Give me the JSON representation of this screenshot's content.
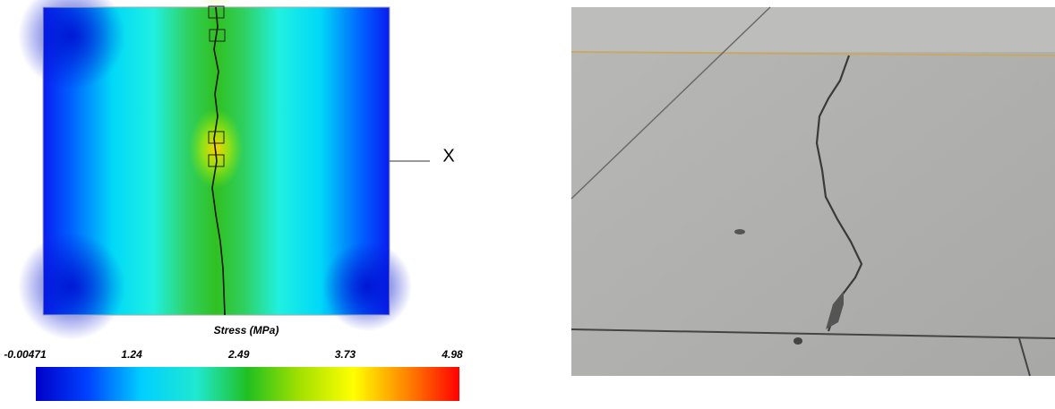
{
  "figure": {
    "colorbar": {
      "title": "Stress (MPa)",
      "ticks": [
        -0.00471,
        1.24,
        2.49,
        3.73,
        4.98
      ]
    },
    "marker_label": "X"
  }
}
